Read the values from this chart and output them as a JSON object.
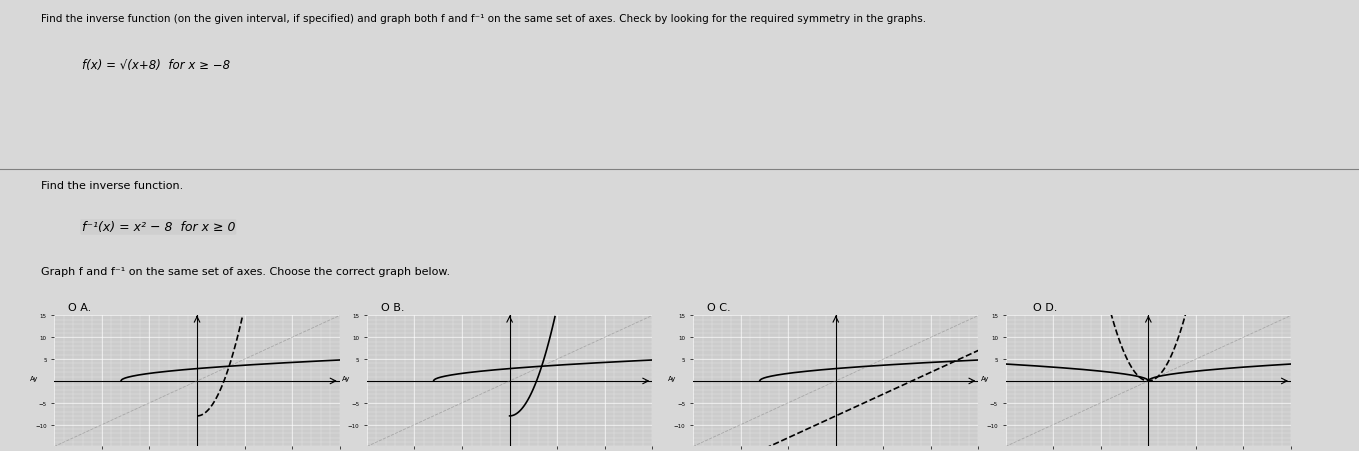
{
  "title_text": "Find the inverse function (on the given interval, if specified) and graph both f and f⁻¹ on the same set of axes. Check by looking for the required symmetry in the graphs.",
  "fx_text": "f(x) = √(x+8)  for x ≥ -8",
  "find_inverse_text": "Find the inverse function.",
  "finv_text": "f⁻¹(x) = x² - 8  for x ≥ 0",
  "graph_text": "Graph f and f⁻¹ on the same set of axes. Choose the correct graph below.",
  "options": [
    "A.",
    "B.",
    "C.",
    "D."
  ],
  "xlim": [
    -15,
    15
  ],
  "ylim": [
    -15,
    15
  ],
  "bg_color": "#d8d8d8",
  "line_color": "#000000",
  "grid_color": "#ffffff",
  "axis_color": "#000000",
  "diagonal_color": "#888888",
  "text_color": "#000000",
  "page_bg": "#e8e8e8"
}
